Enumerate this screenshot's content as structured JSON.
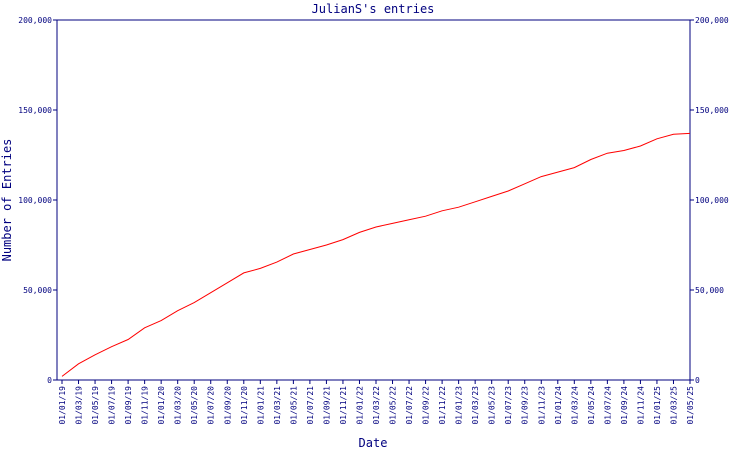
{
  "chart_data": {
    "type": "line",
    "title": "JulianS's entries",
    "xlabel": "Date",
    "ylabel": "Number of Entries",
    "categories": [
      "01/01/19",
      "01/03/19",
      "01/05/19",
      "01/07/19",
      "01/09/19",
      "01/11/19",
      "01/01/20",
      "01/03/20",
      "01/05/20",
      "01/07/20",
      "01/09/20",
      "01/11/20",
      "01/01/21",
      "01/03/21",
      "01/05/21",
      "01/07/21",
      "01/09/21",
      "01/11/21",
      "01/01/22",
      "01/03/22",
      "01/05/22",
      "01/07/22",
      "01/09/22",
      "01/11/22",
      "01/01/23",
      "01/03/23",
      "01/05/23",
      "01/07/23",
      "01/09/23",
      "01/11/23",
      "01/01/24",
      "01/03/24",
      "01/05/24",
      "01/07/24",
      "01/09/24",
      "01/11/24",
      "01/01/25",
      "01/03/25",
      "01/05/25"
    ],
    "series": [
      {
        "name": "Entries",
        "color": "#ff0000",
        "values": [
          2000,
          9000,
          14000,
          18500,
          22500,
          29000,
          33000,
          38500,
          43000,
          48500,
          54000,
          59500,
          62000,
          65500,
          70000,
          72500,
          75000,
          78000,
          82000,
          85000,
          87000,
          89000,
          91000,
          94000,
          96000,
          99000,
          102000,
          105000,
          109000,
          113000,
          115500,
          118000,
          122500,
          126000,
          127500,
          130000,
          134000,
          136500,
          137000
        ]
      }
    ],
    "ylim": [
      0,
      200000
    ],
    "yticks": [
      0,
      {
        "value": 50000,
        "label": "50,000"
      },
      {
        "value": 100000,
        "label": "100,000"
      },
      {
        "value": 150000,
        "label": "150,000"
      },
      {
        "value": 200000,
        "label": "200,000"
      }
    ],
    "y2lim": [
      0,
      200000
    ],
    "y2ticks": [
      0,
      {
        "value": 50000,
        "label": "50,000"
      },
      {
        "value": 100000,
        "label": "100,000"
      },
      {
        "value": 150000,
        "label": "150,000"
      },
      {
        "value": 200000,
        "label": "200,000"
      }
    ],
    "axis_color": "#00007f"
  }
}
